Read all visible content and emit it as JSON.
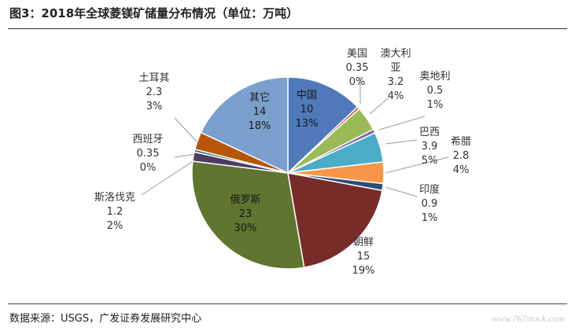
{
  "title": "图3：2018年全球菱镁矿储量分布情况（单位：万吨）",
  "source": "数据来源：USGS，广发证券发展研究中心",
  "watermark": "www.767stock.com",
  "chart_data": {
    "type": "pie",
    "start_angle_deg": 0,
    "direction": "clockwise",
    "slices": [
      {
        "name": "中国",
        "value": 10,
        "percent": "13%",
        "color": "#4f79b9"
      },
      {
        "name": "美国",
        "value": 0.35,
        "percent": "0%",
        "color": "#c0504d"
      },
      {
        "name": "澳大利亚",
        "value": 3.2,
        "percent": "4%",
        "color": "#9bbb59"
      },
      {
        "name": "奥地利",
        "value": 0.5,
        "percent": "1%",
        "color": "#7f6aa6"
      },
      {
        "name": "巴西",
        "value": 3.9,
        "percent": "5%",
        "color": "#4bacc6"
      },
      {
        "name": "希腊",
        "value": 2.8,
        "percent": "4%",
        "color": "#f79646"
      },
      {
        "name": "印度",
        "value": 0.9,
        "percent": "1%",
        "color": "#2c4d75"
      },
      {
        "name": "朝鲜",
        "value": 15,
        "percent": "19%",
        "color": "#772c2a"
      },
      {
        "name": "俄罗斯",
        "value": 23,
        "percent": "30%",
        "color": "#5f7530"
      },
      {
        "name": "斯洛伐克",
        "value": 1.2,
        "percent": "2%",
        "color": "#4d3b62"
      },
      {
        "name": "西班牙",
        "value": 0.35,
        "percent": "0%",
        "color": "#276a7c"
      },
      {
        "name": "土耳其",
        "value": 2.3,
        "percent": "3%",
        "color": "#b65708"
      },
      {
        "name": "其它",
        "value": 14,
        "percent": "18%",
        "color": "#7ba0cd"
      }
    ]
  }
}
